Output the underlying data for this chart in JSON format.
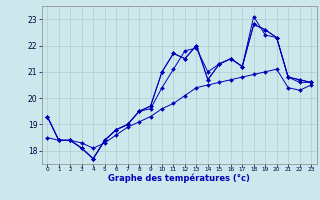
{
  "xlabel": "Graphe des températures (°c)",
  "xlim": [
    -0.5,
    23.5
  ],
  "ylim": [
    17.5,
    23.5
  ],
  "yticks": [
    18,
    19,
    20,
    21,
    22,
    23
  ],
  "xticks": [
    0,
    1,
    2,
    3,
    4,
    5,
    6,
    7,
    8,
    9,
    10,
    11,
    12,
    13,
    14,
    15,
    16,
    17,
    18,
    19,
    20,
    21,
    22,
    23
  ],
  "background_color": "#cce8ec",
  "grid_color": "#b0cccc",
  "line_color": "#0000bb",
  "markersize": 2.0,
  "hours": [
    0,
    1,
    2,
    3,
    4,
    5,
    6,
    7,
    8,
    9,
    10,
    11,
    12,
    13,
    14,
    15,
    16,
    17,
    18,
    19,
    20,
    21,
    22,
    23
  ],
  "series": [
    [
      19.3,
      18.4,
      18.4,
      18.1,
      17.7,
      18.4,
      18.8,
      19.0,
      19.5,
      19.6,
      20.4,
      21.1,
      21.8,
      21.9,
      21.0,
      21.3,
      21.5,
      21.2,
      23.1,
      22.4,
      22.3,
      20.8,
      20.6,
      20.6
    ],
    [
      19.3,
      18.4,
      18.4,
      18.1,
      17.7,
      18.4,
      18.8,
      19.0,
      19.5,
      19.7,
      21.0,
      21.7,
      21.5,
      22.0,
      20.7,
      21.3,
      21.5,
      21.2,
      22.8,
      22.6,
      22.3,
      20.8,
      20.7,
      20.6
    ],
    [
      19.3,
      18.4,
      18.4,
      18.1,
      17.7,
      18.4,
      18.8,
      19.0,
      19.5,
      19.7,
      21.0,
      21.7,
      21.5,
      22.0,
      20.7,
      21.3,
      21.5,
      21.2,
      22.8,
      22.6,
      22.3,
      20.8,
      20.7,
      20.6
    ],
    [
      18.5,
      18.4,
      18.4,
      18.3,
      18.1,
      18.3,
      18.6,
      18.9,
      19.1,
      19.3,
      19.6,
      19.8,
      20.1,
      20.4,
      20.5,
      20.6,
      20.7,
      20.8,
      20.9,
      21.0,
      21.1,
      20.4,
      20.3,
      20.5
    ]
  ]
}
